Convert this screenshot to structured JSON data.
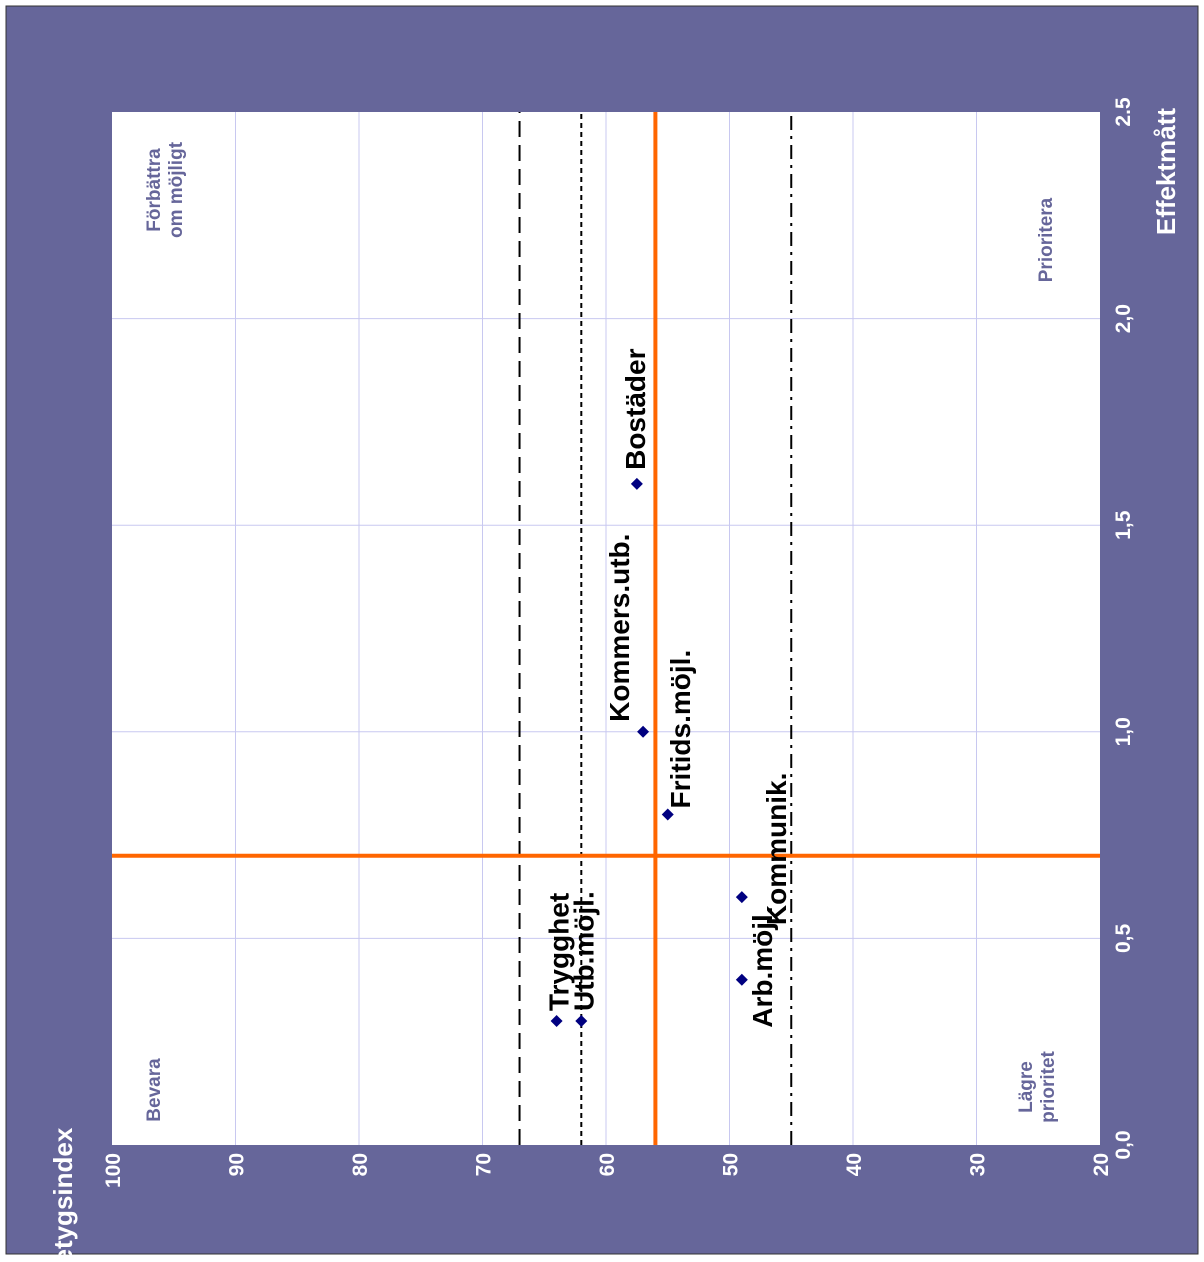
{
  "chart_data": {
    "type": "scatter",
    "orientation": "rotated-90-ccw",
    "xlabel": "Effektmått",
    "ylabel": "Betygsindex",
    "xlim": [
      0,
      2.5
    ],
    "ylim": [
      20,
      100
    ],
    "x_ticks": [
      "0,0",
      "0,5",
      "1,0",
      "1,5",
      "2,0",
      "2.5"
    ],
    "y_ticks": [
      "100",
      "90",
      "80",
      "70",
      "60",
      "50",
      "40",
      "30",
      "20"
    ],
    "grid": true,
    "points": [
      {
        "label": "Trygghet",
        "x": 0.3,
        "y": 64
      },
      {
        "label": "Utb.möjl.",
        "x": 0.3,
        "y": 62
      },
      {
        "label": "Arb.möjl.",
        "x": 0.4,
        "y": 49
      },
      {
        "label": "Kommunik.",
        "x": 0.6,
        "y": 49
      },
      {
        "label": "Fritids.möjl.",
        "x": 0.8,
        "y": 55
      },
      {
        "label": "Kommers.utb.",
        "x": 1.0,
        "y": 57
      },
      {
        "label": "Bostäder",
        "x": 1.6,
        "y": 57.5
      }
    ],
    "reference_lines": {
      "mean_effect_x": 0.7,
      "mean_index_y": 56,
      "dashed_y": 67,
      "dotted_y": 62,
      "dashdot_y": 45
    },
    "quadrant_labels": {
      "top_left": [
        "Förbättra",
        "om möjligt"
      ],
      "top_right": [
        "Prioritera"
      ],
      "bottom_left": [
        "Bevara"
      ],
      "bottom_right": [
        "Lägre",
        "prioritet"
      ]
    },
    "colors": {
      "background": "#66669a",
      "plot_area": "#ffffff",
      "gridline": "#c8c8f0",
      "reference_line": "#ff6600",
      "marker": "#000080",
      "quadrant_text": "#66669a"
    }
  }
}
